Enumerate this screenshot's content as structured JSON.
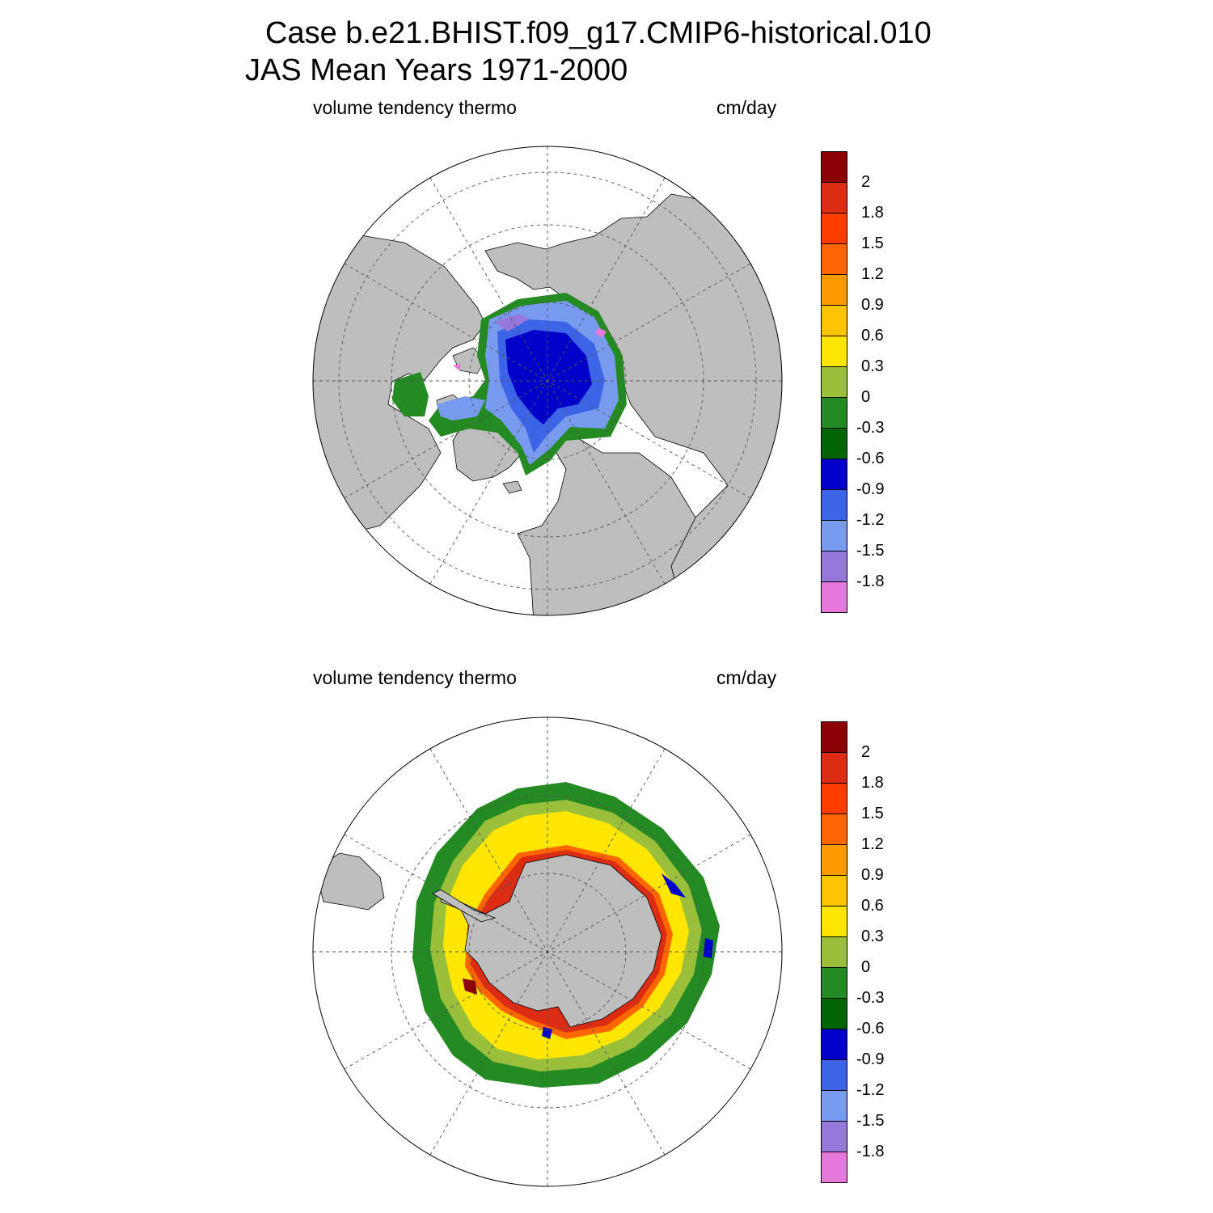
{
  "title": {
    "line1": "Case b.e21.BHIST.f09_g17.CMIP6-historical.010",
    "line2": "JAS Mean   Years 1971-2000"
  },
  "colorbar": {
    "labels": [
      "2",
      "1.8",
      "1.5",
      "1.2",
      "0.9",
      "0.6",
      "0.3",
      "0",
      "-0.3",
      "-0.6",
      "-0.9",
      "-1.2",
      "-1.5",
      "-1.8"
    ],
    "colors": [
      "#8b0000",
      "#dc2c14",
      "#ff3c00",
      "#ff6600",
      "#ff9900",
      "#ffc400",
      "#ffe600",
      "#9abf3a",
      "#238b22",
      "#006400",
      "#0000c8",
      "#3c64e6",
      "#789bf0",
      "#9678dc",
      "#e678dc"
    ]
  },
  "colors": {
    "land": "#bebebe",
    "ocean": "#ffffff",
    "grid": "#555555"
  },
  "panels": [
    {
      "id": "north",
      "variable_label": "volume tendency thermo",
      "units_label": "cm/day",
      "hemisphere": "Northern",
      "projection": "polar stereographic",
      "dominant_values": "negative (-0.3 to -1.8), centered -0.6 to -0.9 over central Arctic"
    },
    {
      "id": "south",
      "variable_label": "volume tendency thermo",
      "units_label": "cm/day",
      "hemisphere": "Southern",
      "projection": "polar stereographic",
      "dominant_values": "positive (0.3 to 0.6) in pack ice, up to 2 near Antarctic coast, -0.3 to -0.6 at ice edge"
    }
  ]
}
